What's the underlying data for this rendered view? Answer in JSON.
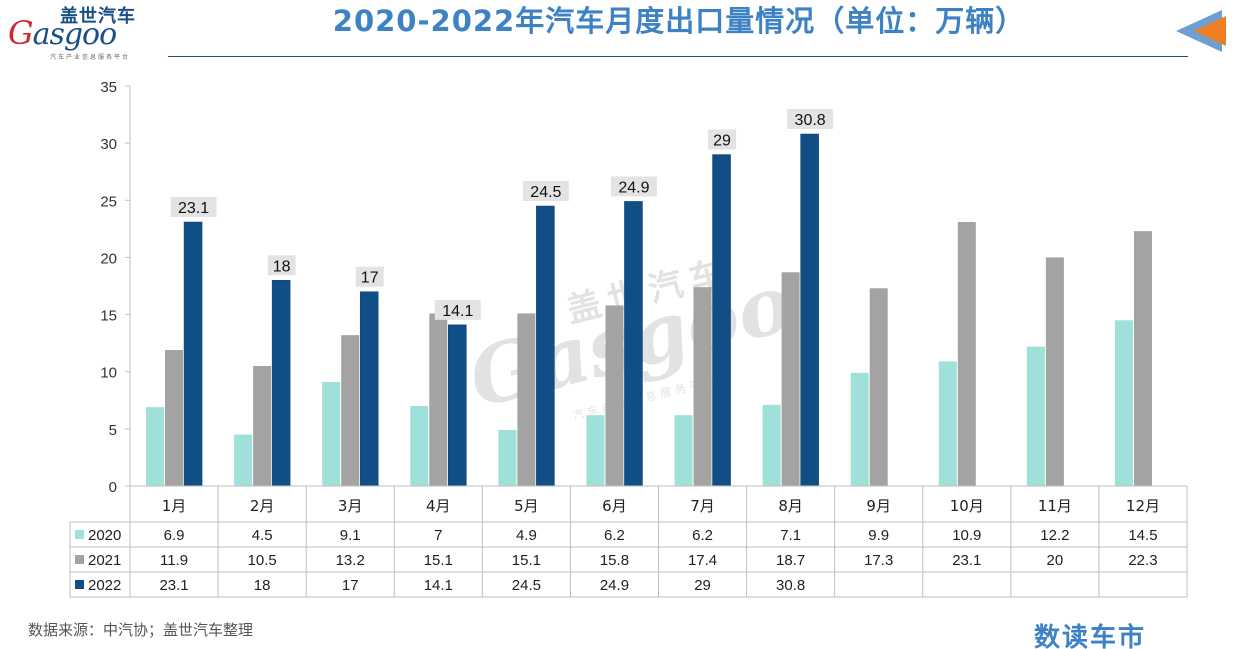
{
  "header": {
    "title": "2020-2022年汽车月度出口量情况（单位：万辆）",
    "logo_cn": "盖世汽车",
    "logo_en_g": "G",
    "logo_en_rest": "asgoo",
    "logo_sub": "汽车产业信息服务平台"
  },
  "footer": {
    "source": "数据来源：中汽协；盖世汽车整理",
    "brand": "数读车市"
  },
  "colors": {
    "s2020": "#9fe0da",
    "s2021": "#a3a3a3",
    "s2022": "#0f4f86",
    "title": "#3d82c4"
  },
  "chart_data": {
    "type": "bar",
    "title": "2020-2022年汽车月度出口量情况（单位：万辆）",
    "categories": [
      "1月",
      "2月",
      "3月",
      "4月",
      "5月",
      "6月",
      "7月",
      "8月",
      "9月",
      "10月",
      "11月",
      "12月"
    ],
    "series": [
      {
        "name": "2020",
        "values": [
          6.9,
          4.5,
          9.1,
          7,
          4.9,
          6.2,
          6.2,
          7.1,
          9.9,
          10.9,
          12.2,
          14.5
        ]
      },
      {
        "name": "2021",
        "values": [
          11.9,
          10.5,
          13.2,
          15.1,
          15.1,
          15.8,
          17.4,
          18.7,
          17.3,
          23.1,
          20,
          22.3
        ]
      },
      {
        "name": "2022",
        "values": [
          23.1,
          18,
          17,
          14.1,
          24.5,
          24.9,
          29,
          30.8,
          null,
          null,
          null,
          null
        ]
      }
    ],
    "yticks": [
      0,
      5,
      10,
      15,
      20,
      25,
      30,
      35
    ],
    "ylim": [
      0,
      35
    ],
    "data_labels_series": "2022",
    "legend": "data-table-left",
    "grid": false
  }
}
